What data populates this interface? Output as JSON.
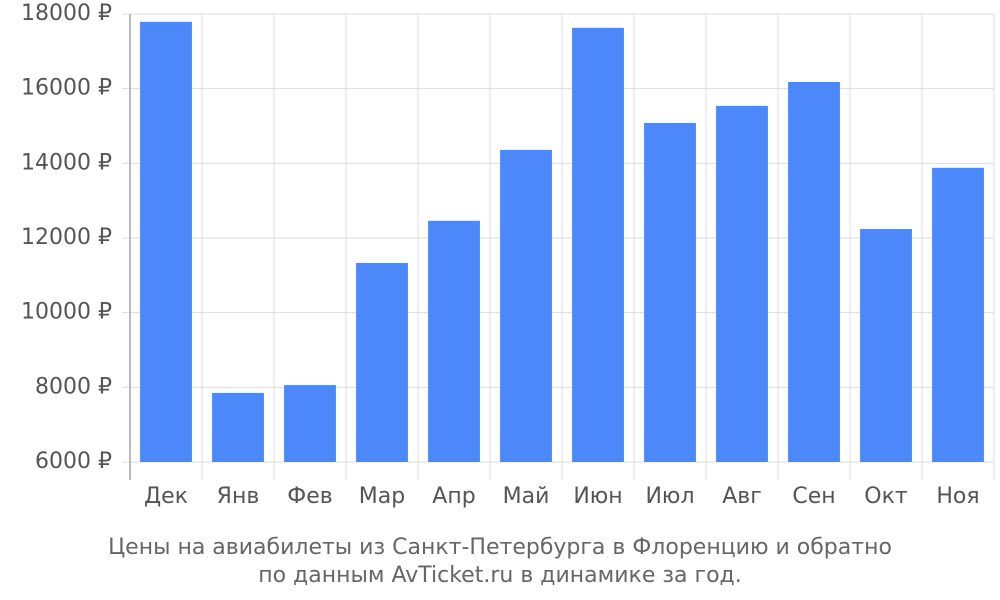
{
  "chart_data": {
    "type": "bar",
    "categories": [
      "Дек",
      "Янв",
      "Фев",
      "Мар",
      "Апр",
      "Май",
      "Июн",
      "Июл",
      "Авг",
      "Сен",
      "Окт",
      "Ноя"
    ],
    "values": [
      17790,
      7850,
      8060,
      11330,
      12460,
      14360,
      17630,
      15080,
      15540,
      16180,
      12240,
      13880
    ],
    "color": "#4d88fb",
    "ylim": [
      6000,
      18000
    ],
    "yticks": [
      {
        "value": 6000,
        "label": "6000 ₽"
      },
      {
        "value": 8000,
        "label": "8000 ₽"
      },
      {
        "value": 10000,
        "label": "10000 ₽"
      },
      {
        "value": 12000,
        "label": "12000 ₽"
      },
      {
        "value": 14000,
        "label": "14000 ₽"
      },
      {
        "value": 16000,
        "label": "16000 ₽"
      },
      {
        "value": 18000,
        "label": "18000 ₽"
      }
    ],
    "grid": true,
    "caption": [
      "Цены на авиабилеты из Санкт-Петербурга в Флоренцию и обратно",
      "по данным AvTicket.ru в динамике за год."
    ]
  }
}
